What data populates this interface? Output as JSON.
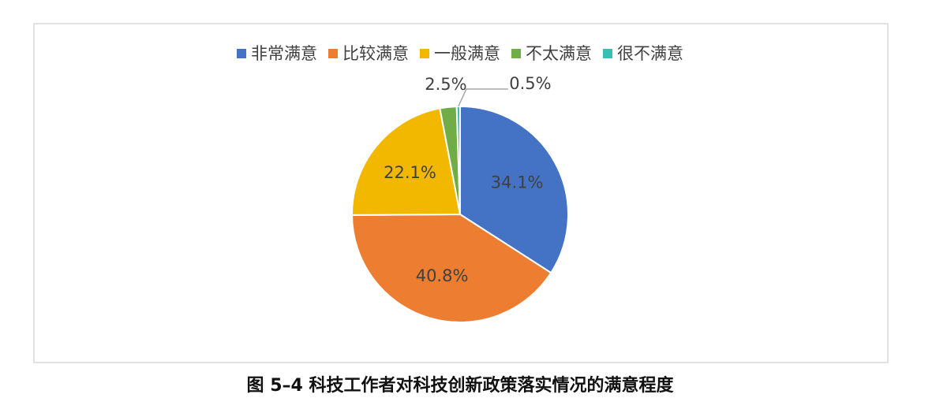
{
  "chart_data": {
    "type": "pie",
    "title": "图 5–4  科技工作者对科技创新政策落实情况的满意程度",
    "categories": [
      "非常满意",
      "比较满意",
      "一般满意",
      "不太满意",
      "很不满意"
    ],
    "values": [
      34.1,
      40.8,
      22.1,
      2.5,
      0.5
    ],
    "value_labels": [
      "34.1%",
      "40.8%",
      "22.1%",
      "2.5%",
      "0.5%"
    ],
    "colors": [
      "#4472c4",
      "#ed7d31",
      "#f2b800",
      "#70ad47",
      "#36bfb4"
    ],
    "legend": "top"
  }
}
